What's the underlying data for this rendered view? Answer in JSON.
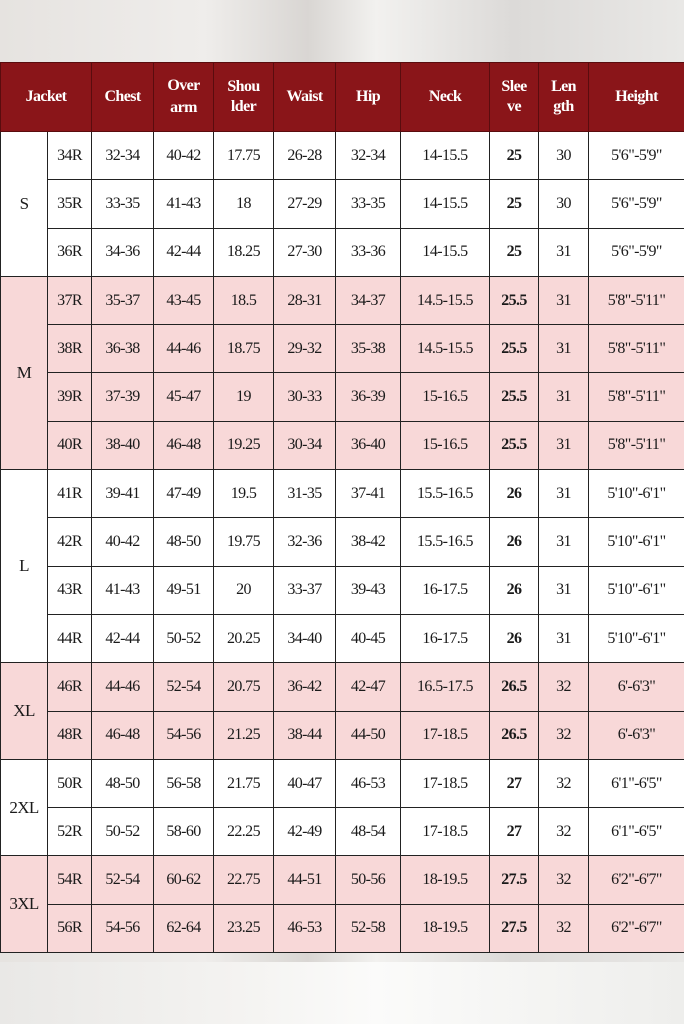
{
  "header": [
    "Jacket",
    "Chest",
    "Over arm",
    "Shou lder",
    "Waist",
    "Hip",
    "Neck",
    "Slee ve",
    "Len gth",
    "Height"
  ],
  "colors": {
    "header_bg": "#8a1519",
    "pink_row": "#f8d8d8",
    "white_row": "#ffffff"
  },
  "groups": [
    {
      "size": "S",
      "shaded": false,
      "rows": [
        [
          "34R",
          "32-34",
          "40-42",
          "17.75",
          "26-28",
          "32-34",
          "14-15.5",
          "25",
          "30",
          "5'6\"-5'9\""
        ],
        [
          "35R",
          "33-35",
          "41-43",
          "18",
          "27-29",
          "33-35",
          "14-15.5",
          "25",
          "30",
          "5'6\"-5'9\""
        ],
        [
          "36R",
          "34-36",
          "42-44",
          "18.25",
          "27-30",
          "33-36",
          "14-15.5",
          "25",
          "31",
          "5'6\"-5'9\""
        ]
      ]
    },
    {
      "size": "M",
      "shaded": true,
      "rows": [
        [
          "37R",
          "35-37",
          "43-45",
          "18.5",
          "28-31",
          "34-37",
          "14.5-15.5",
          "25.5",
          "31",
          "5'8\"-5'11\""
        ],
        [
          "38R",
          "36-38",
          "44-46",
          "18.75",
          "29-32",
          "35-38",
          "14.5-15.5",
          "25.5",
          "31",
          "5'8\"-5'11\""
        ],
        [
          "39R",
          "37-39",
          "45-47",
          "19",
          "30-33",
          "36-39",
          "15-16.5",
          "25.5",
          "31",
          "5'8\"-5'11\""
        ],
        [
          "40R",
          "38-40",
          "46-48",
          "19.25",
          "30-34",
          "36-40",
          "15-16.5",
          "25.5",
          "31",
          "5'8\"-5'11\""
        ]
      ]
    },
    {
      "size": "L",
      "shaded": false,
      "rows": [
        [
          "41R",
          "39-41",
          "47-49",
          "19.5",
          "31-35",
          "37-41",
          "15.5-16.5",
          "26",
          "31",
          "5'10\"-6'1\""
        ],
        [
          "42R",
          "40-42",
          "48-50",
          "19.75",
          "32-36",
          "38-42",
          "15.5-16.5",
          "26",
          "31",
          "5'10\"-6'1\""
        ],
        [
          "43R",
          "41-43",
          "49-51",
          "20",
          "33-37",
          "39-43",
          "16-17.5",
          "26",
          "31",
          "5'10\"-6'1\""
        ],
        [
          "44R",
          "42-44",
          "50-52",
          "20.25",
          "34-40",
          "40-45",
          "16-17.5",
          "26",
          "31",
          "5'10\"-6'1\""
        ]
      ]
    },
    {
      "size": "XL",
      "shaded": true,
      "rows": [
        [
          "46R",
          "44-46",
          "52-54",
          "20.75",
          "36-42",
          "42-47",
          "16.5-17.5",
          "26.5",
          "32",
          "6'-6'3\""
        ],
        [
          "48R",
          "46-48",
          "54-56",
          "21.25",
          "38-44",
          "44-50",
          "17-18.5",
          "26.5",
          "32",
          "6'-6'3\""
        ]
      ]
    },
    {
      "size": "2XL",
      "shaded": false,
      "rows": [
        [
          "50R",
          "48-50",
          "56-58",
          "21.75",
          "40-47",
          "46-53",
          "17-18.5",
          "27",
          "32",
          "6'1\"-6'5\""
        ],
        [
          "52R",
          "50-52",
          "58-60",
          "22.25",
          "42-49",
          "48-54",
          "17-18.5",
          "27",
          "32",
          "6'1\"-6'5\""
        ]
      ]
    },
    {
      "size": "3XL",
      "shaded": true,
      "rows": [
        [
          "54R",
          "52-54",
          "60-62",
          "22.75",
          "44-51",
          "50-56",
          "18-19.5",
          "27.5",
          "32",
          "6'2\"-6'7\""
        ],
        [
          "56R",
          "54-56",
          "62-64",
          "23.25",
          "46-53",
          "52-58",
          "18-19.5",
          "27.5",
          "32",
          "6'2\"-6'7\""
        ]
      ]
    }
  ]
}
